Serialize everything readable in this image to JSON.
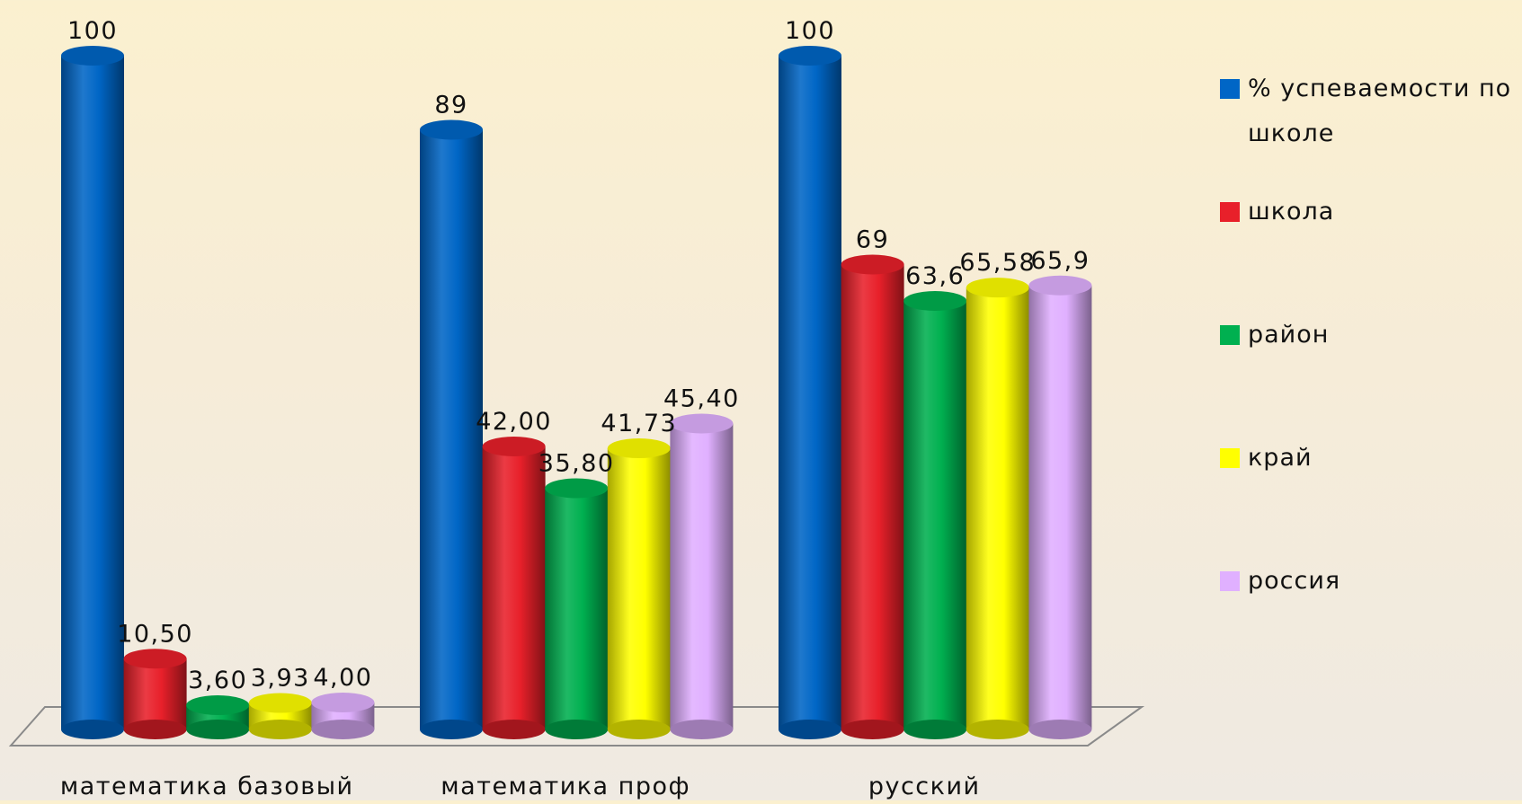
{
  "chart_data": {
    "type": "bar",
    "categories": [
      "математика базовый",
      "математика проф",
      "русский"
    ],
    "series": [
      {
        "name": "% успеваемости по школе",
        "color": "#0066c6",
        "values": [
          100,
          89,
          100
        ],
        "value_labels": [
          "100",
          "89",
          "100"
        ]
      },
      {
        "name": "школа",
        "color": "#e8202a",
        "values": [
          10.5,
          42.0,
          69
        ],
        "value_labels": [
          "10,50",
          "42,00",
          "69"
        ]
      },
      {
        "name": "район",
        "color": "#00b050",
        "values": [
          3.6,
          35.8,
          63.6
        ],
        "value_labels": [
          "3,60",
          "35,80",
          "63,6"
        ]
      },
      {
        "name": "край",
        "color": "#ffff00",
        "values": [
          3.93,
          41.73,
          65.58
        ],
        "value_labels": [
          "3,93",
          "41,73",
          "65,58"
        ]
      },
      {
        "name": "россия",
        "color": "#e0b0ff",
        "values": [
          4.0,
          45.4,
          65.9
        ],
        "value_labels": [
          "4,00",
          "45,40",
          "65,9"
        ]
      }
    ],
    "bar_style": "3d-cylinder",
    "grid": false,
    "legend_position": "right",
    "ylim": [
      0,
      100
    ]
  }
}
